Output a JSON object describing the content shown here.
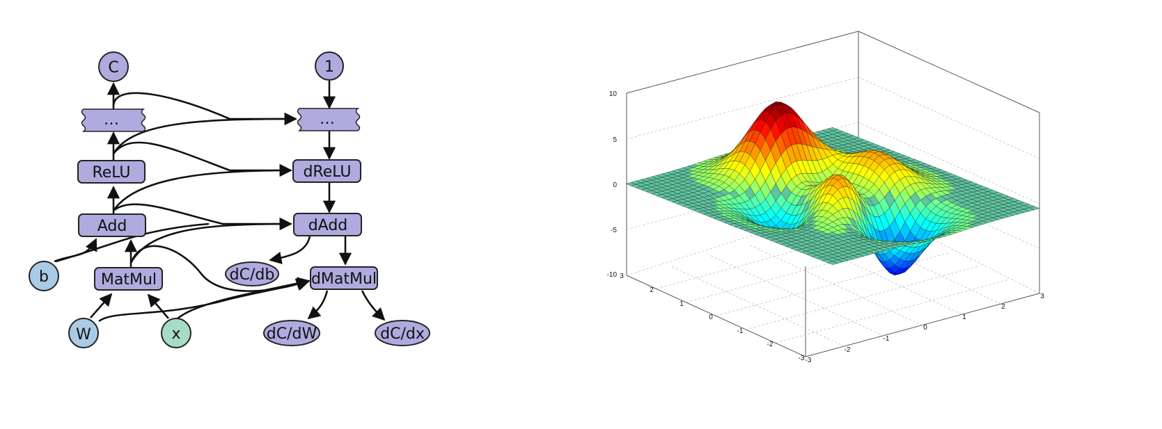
{
  "graph": {
    "forward_nodes": {
      "c": "C",
      "fwd_ellipsis": "…",
      "relu": "ReLU",
      "add": "Add",
      "b": "b",
      "matmul": "MatMul",
      "w": "W",
      "x": "x"
    },
    "backward_nodes": {
      "one": "1",
      "bwd_ellipsis": "…",
      "drelu": "dReLU",
      "dadd": "dAdd",
      "dcdb": "dC/db",
      "dmatmul": "dMatMul",
      "dcdw": "dC/dW",
      "dcdx": "dC/dx"
    },
    "colors": {
      "op_fill": "#afabdf",
      "param_fill": "#a9cbe6",
      "input_fill": "#a6dcc4",
      "stroke": "#222222"
    }
  },
  "surface_plot": {
    "z_ticks": [
      "10",
      "5",
      "0",
      "-5",
      "-10"
    ],
    "left_axis_ticks": [
      "3",
      "2",
      "1",
      "0",
      "-1",
      "-2",
      "-3"
    ],
    "right_axis_ticks": [
      "-3",
      "-2",
      "-1",
      "0",
      "1",
      "2",
      "3"
    ],
    "colormap": "jet",
    "plane_color": "#5ec6a0",
    "grid": true
  }
}
